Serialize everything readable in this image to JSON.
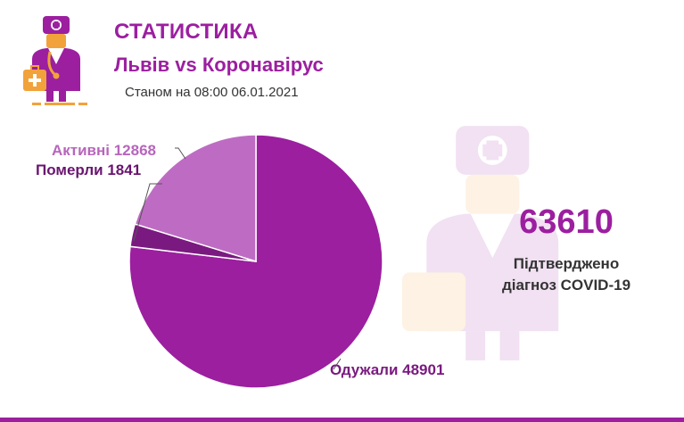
{
  "header": {
    "title": "СТАТИСТИКА",
    "subtitle": "Львів vs Коронавірус",
    "date_line": "Станом на 08:00 06.01.2021"
  },
  "summary": {
    "total": "63610",
    "caption_line1": "Підтверджено",
    "caption_line2": "діагноз COVID-19"
  },
  "colors": {
    "accent": "#9c1fa0",
    "recovered": "#9c1fa0",
    "active": "#be6cc3",
    "deceased": "#7a1a80"
  },
  "chart_data": {
    "type": "pie",
    "title": "",
    "slices": [
      {
        "label": "Одужали",
        "value": 48901,
        "display": "Одужали 48901",
        "color": "#9c1fa0",
        "text_color": "#7a1a80"
      },
      {
        "label": "Померли",
        "value": 1841,
        "display": "Померли 1841",
        "color": "#7a1a80",
        "text_color": "#6a1570"
      },
      {
        "label": "Активні",
        "value": 12868,
        "display": "Активні 12868",
        "color": "#be6cc3",
        "text_color": "#b865bd"
      }
    ]
  }
}
